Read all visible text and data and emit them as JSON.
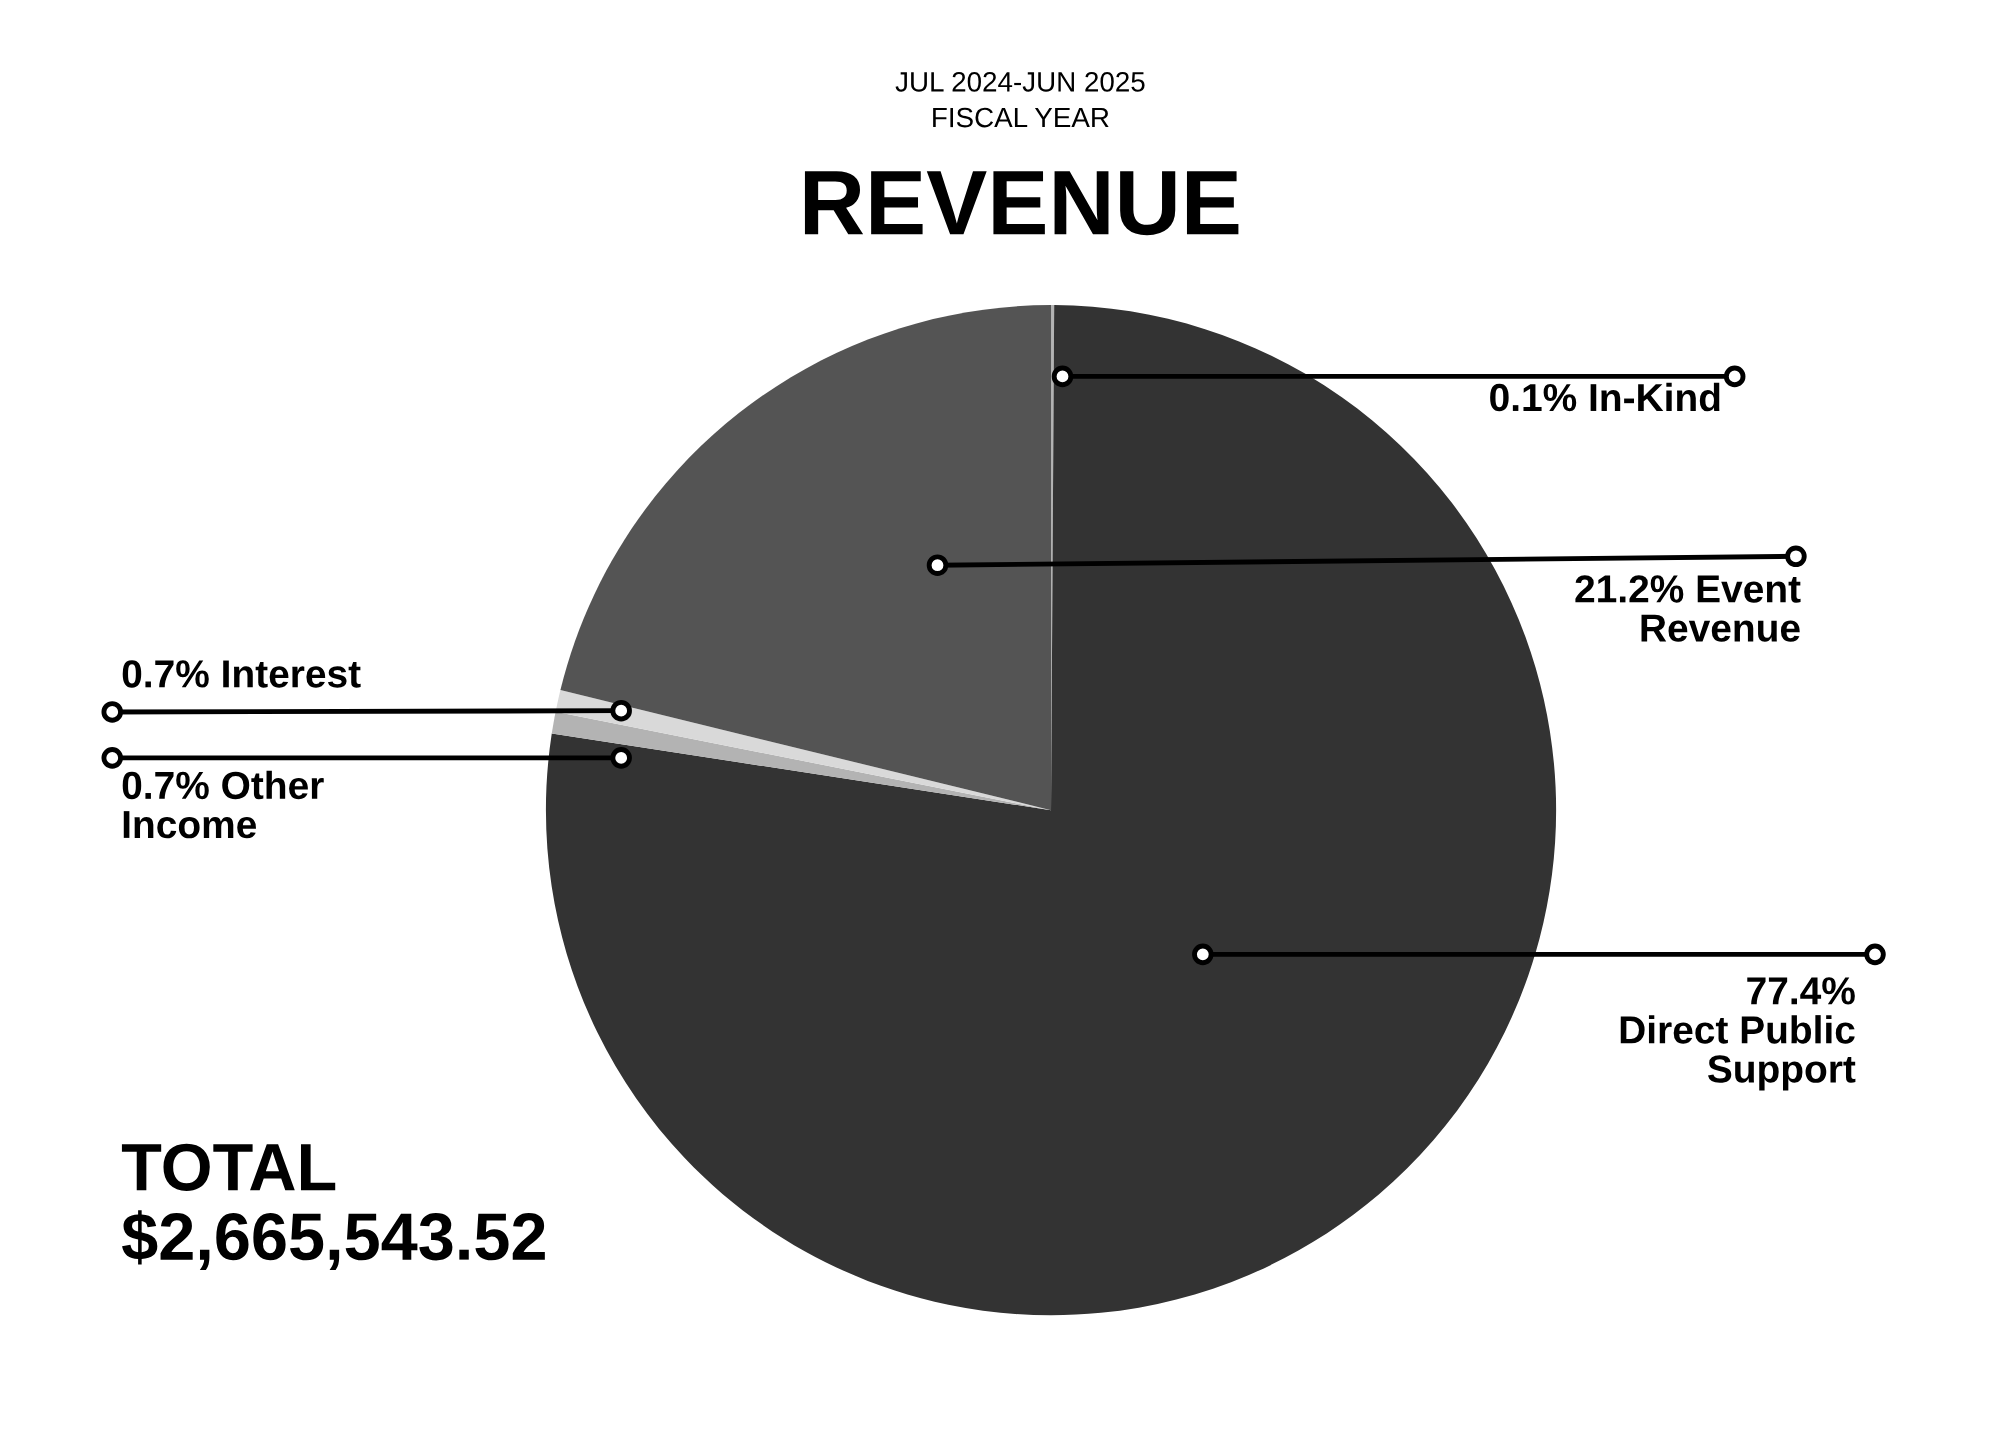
{
  "chart_data": {
    "type": "pie",
    "subtitle": "JUL 2024-JUN 2025\nFISCAL YEAR",
    "title": "REVENUE",
    "categories": [
      "In-Kind",
      "Direct Public Support",
      "Other Income",
      "Interest",
      "Event Revenue"
    ],
    "values": [
      0.1,
      77.4,
      0.7,
      0.7,
      21.2
    ],
    "value_labels": [
      "0.1%",
      "77.4%",
      "0.7%",
      "0.7%",
      "21.2%"
    ],
    "colors": [
      "#b3b3b3",
      "#333333",
      "#b3b3b3",
      "#d9d9d9",
      "#545454"
    ],
    "annotations": [
      "TOTAL\n$2,665,543.52"
    ],
    "legend": false
  }
}
